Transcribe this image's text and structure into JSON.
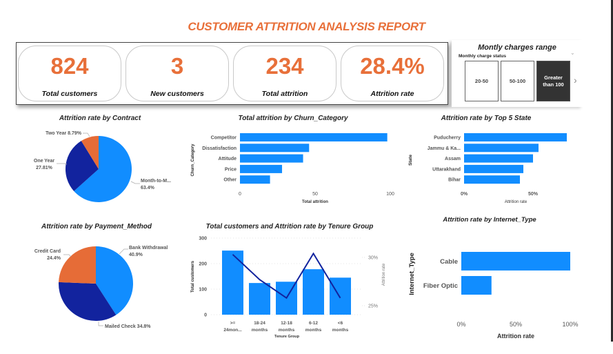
{
  "report": {
    "title": "CUSTOMER ATTRITION ANALYSIS REPORT"
  },
  "kpis": [
    {
      "value": "824",
      "label": "Total customers"
    },
    {
      "value": "3",
      "label": "New customers"
    },
    {
      "value": "234",
      "label": "Total attrition"
    },
    {
      "value": "28.4%",
      "label": "Attrition rate"
    }
  ],
  "slicer": {
    "title": "Montly charges range",
    "subtitle": "Monthly charge status",
    "options": [
      {
        "label": "20-50",
        "selected": false
      },
      {
        "label": "50-100",
        "selected": false
      },
      {
        "label": "Greater than 100",
        "selected": true
      }
    ],
    "chevron_down_icon": "⌄",
    "next_icon": "›"
  },
  "colors": {
    "accent": "#E8703A",
    "bar_blue": "#118DFF",
    "navy": "#12239E",
    "orange": "#E66C37"
  },
  "chart_data": [
    {
      "id": "contract",
      "type": "pie",
      "title": "Attrition rate by Contract",
      "slices": [
        {
          "label": "Month-to-M...",
          "value": 63.4,
          "display": "63.4%",
          "color": "#118DFF"
        },
        {
          "label": "One Year",
          "value": 27.81,
          "display": "27.81%",
          "color": "#12239E"
        },
        {
          "label": "Two Year",
          "value": 8.79,
          "display": "8.79%",
          "color": "#E66C37"
        }
      ]
    },
    {
      "id": "churn",
      "type": "bar",
      "orientation": "horizontal",
      "title": "Total attrition by Churn_Category",
      "categories": [
        "Competitor",
        "Dissatisfaction",
        "Attitude",
        "Price",
        "Other"
      ],
      "values": [
        98,
        46,
        42,
        28,
        20
      ],
      "xlabel": "Total attrition",
      "ylabel": "Churn_Category",
      "xlim": [
        0,
        100
      ],
      "xticks": [
        "0",
        "50",
        "100"
      ],
      "xtick_values": [
        0,
        50,
        100
      ]
    },
    {
      "id": "state",
      "type": "bar",
      "orientation": "horizontal",
      "title": "Attrition rate by Top 5 State",
      "categories": [
        "Puducherry",
        "Jammu & Ka...",
        "Assam",
        "Uttarakhand",
        "Bihar"
      ],
      "values": [
        74.5,
        54,
        50,
        43,
        40.5
      ],
      "xlabel": "Attrition rate",
      "ylabel": "State",
      "xlim": [
        0,
        75
      ],
      "xticks": [
        "0%",
        "50%"
      ],
      "xtick_values": [
        0,
        50
      ]
    },
    {
      "id": "payment",
      "type": "pie",
      "title": "Attrition rate by Payment_Method",
      "slices": [
        {
          "label": "Bank Withdrawal",
          "value": 40.9,
          "display": "40.9%",
          "color": "#118DFF"
        },
        {
          "label": "Mailed Check",
          "value": 34.8,
          "display": "34.8%",
          "color": "#12239E"
        },
        {
          "label": "Credit Card",
          "value": 24.4,
          "display": "24.4%",
          "color": "#E66C37"
        }
      ]
    },
    {
      "id": "tenure",
      "type": "bar",
      "title": "Total customers and Attrition rate by Tenure Group",
      "categories": [
        ">= 24mon...",
        "18-24 months",
        "12-18 months",
        "6-12 months",
        "<6 months"
      ],
      "category_lines": [
        [
          ">=",
          "24mon..."
        ],
        [
          "18-24",
          "months"
        ],
        [
          "12-18",
          "months"
        ],
        [
          "6-12",
          "months"
        ],
        [
          "<6",
          "months"
        ]
      ],
      "series": [
        {
          "name": "Total customers",
          "type": "bar",
          "axis": "left",
          "values": [
            251,
            124,
            129,
            178,
            145
          ]
        },
        {
          "name": "Attrition rate",
          "type": "line",
          "axis": "right",
          "values": [
            30.3,
            27.7,
            25.8,
            30.4,
            25.8
          ]
        }
      ],
      "xlabel": "Tenure Group",
      "ylabel": "Total customers",
      "y2label": "Attrition rate",
      "ylim": [
        0,
        300
      ],
      "yticks": [
        "0",
        "100",
        "200",
        "300"
      ],
      "ytick_values": [
        0,
        100,
        200,
        300
      ],
      "y2lim": [
        23.9,
        31.9
      ],
      "y2ticks": [
        "25%",
        "30%"
      ],
      "y2tick_values": [
        25,
        30
      ],
      "grid": true
    },
    {
      "id": "internet",
      "type": "bar",
      "orientation": "horizontal",
      "title": "Attrition rate by Internet_Type",
      "categories": [
        "Cable",
        "Fiber Optic"
      ],
      "values": [
        100,
        27.7
      ],
      "xlabel": "Attrition rate",
      "ylabel": "Internet_Type",
      "xlim": [
        0,
        100
      ],
      "xticks": [
        "0%",
        "50%",
        "100%"
      ],
      "xtick_values": [
        0,
        50,
        100
      ]
    }
  ]
}
